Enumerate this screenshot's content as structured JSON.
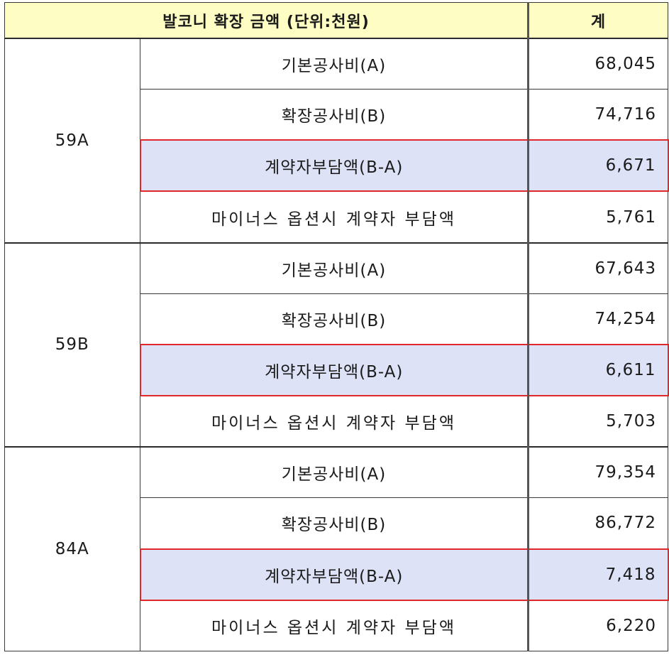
{
  "header": {
    "title": "발코니 확장 금액 (단위:천원)",
    "total": "계"
  },
  "groups": [
    {
      "type": "59A",
      "rows": [
        {
          "label": "기본공사비(A)",
          "value": "68,045",
          "highlight": false
        },
        {
          "label": "확장공사비(B)",
          "value": "74,716",
          "highlight": false
        },
        {
          "label": "계약자부담액(B-A)",
          "value": "6,671",
          "highlight": true
        },
        {
          "label": "마이너스 옵션시 계약자 부담액",
          "value": "5,761",
          "highlight": false
        }
      ]
    },
    {
      "type": "59B",
      "rows": [
        {
          "label": "기본공사비(A)",
          "value": "67,643",
          "highlight": false
        },
        {
          "label": "확장공사비(B)",
          "value": "74,254",
          "highlight": false
        },
        {
          "label": "계약자부담액(B-A)",
          "value": "6,611",
          "highlight": true
        },
        {
          "label": "마이너스 옵션시 계약자 부담액",
          "value": "5,703",
          "highlight": false
        }
      ]
    },
    {
      "type": "84A",
      "rows": [
        {
          "label": "기본공사비(A)",
          "value": "79,354",
          "highlight": false
        },
        {
          "label": "확장공사비(B)",
          "value": "86,772",
          "highlight": false
        },
        {
          "label": "계약자부담액(B-A)",
          "value": "7,418",
          "highlight": true
        },
        {
          "label": "마이너스 옵션시 계약자 부담액",
          "value": "6,220",
          "highlight": false
        }
      ]
    }
  ],
  "colors": {
    "header_bg": "#fdfdc4",
    "highlight_bg": "#dde2f7",
    "highlight_border": "#e0282a"
  }
}
